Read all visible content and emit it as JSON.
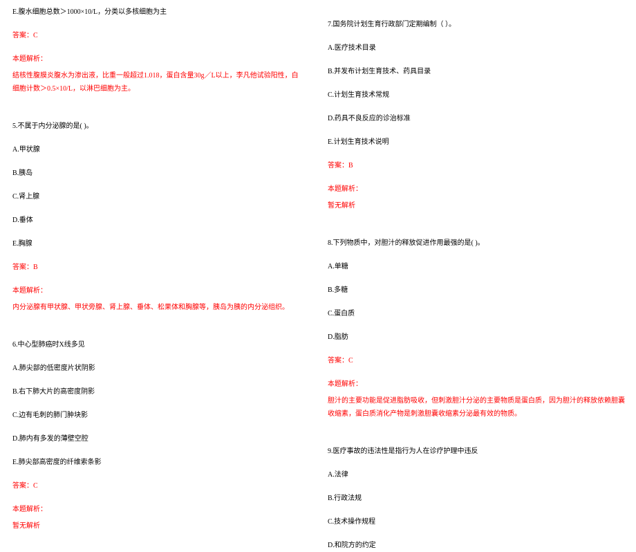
{
  "colors": {
    "text": "#000000",
    "accent": "#ff0000",
    "background": "#ffffff"
  },
  "typography": {
    "font_family": "SimSun",
    "font_size_pt": 10,
    "line_height": 1.9
  },
  "left": {
    "q4_optE": "E.腹水细胞总数＞1000×10/L，分类以多核细胞为主",
    "q4_answer": "答案：C",
    "q4_exp_title": "本题解析：",
    "q4_exp_body": "结核性腹膜炎腹水为渗出液，比重一般超过1.018，蛋白含量30g／L以上，李凡他试验阳性，白细胞计数＞0.5×10/L，以淋巴细胞为主。",
    "q5_stem": "5.不属于内分泌腺的是( )。",
    "q5_A": "A.甲状腺",
    "q5_B": "B.胰岛",
    "q5_C": "C.肾上腺",
    "q5_D": "D.垂体",
    "q5_E": "E.胸腺",
    "q5_answer": "答案：B",
    "q5_exp_title": "本题解析：",
    "q5_exp_body": "内分泌腺有甲状腺、甲状旁腺、肾上腺、垂体、松果体和胸腺等，胰岛为胰的内分泌组织。",
    "q6_stem": "6.中心型肺癌时X线多见",
    "q6_A": "A.肺尖部的低密度片状阴影",
    "q6_B": "B.右下肺大片的高密度阴影",
    "q6_C": "C.边有毛刺的肺门肿块影",
    "q6_D": "D.肺内有多发的薄壁空腔",
    "q6_E": "E.肺尖部高密度的纤维索条影",
    "q6_answer": "答案：C",
    "q6_exp_title": "本题解析：",
    "q6_exp_body": "暂无解析"
  },
  "right": {
    "q7_stem": "7.国务院计划生育行政部门定期编制（  ）。",
    "q7_A": "A.医疗技术目录",
    "q7_B": "B.并发布计划生育技术、药具目录",
    "q7_C": "C.计划生育技术常规",
    "q7_D": "D.药具不良反应的诊治标准",
    "q7_E": "E.计划生育技术说明",
    "q7_answer": "答案：B",
    "q7_exp_title": "本题解析：",
    "q7_exp_body": "暂无解析",
    "q8_stem": "8.下列物质中，对胆汁的释放促进作用最强的是( )。",
    "q8_A": "A.单糖",
    "q8_B": "B.多糖",
    "q8_C": "C.蛋白质",
    "q8_D": "D.脂肪",
    "q8_answer": "答案：C",
    "q8_exp_title": "本题解析：",
    "q8_exp_body": "胆汁的主要功能是促进脂肪吸收，但刺激胆汁分泌的主要物质是蛋白质，因为胆汁的释放依赖胆囊收缩素，蛋白质消化产物是刺激胆囊收缩素分泌最有效的物质。",
    "q9_stem": "9.医疗事故的违法性是指行为人在诊疗护理中违反",
    "q9_A": "A.法律",
    "q9_B": "B.行政法规",
    "q9_C": "C.技术操作规程",
    "q9_D": "D.和院方的约定"
  }
}
